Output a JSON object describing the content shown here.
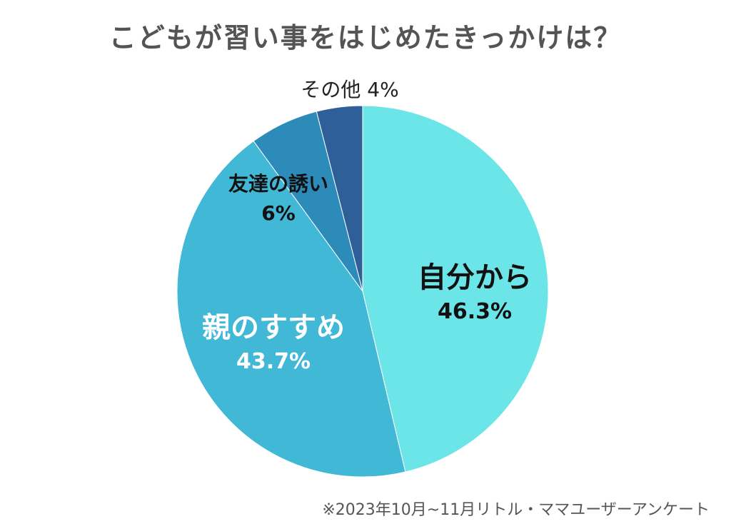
{
  "chart_data": {
    "type": "pie",
    "title": "こどもが習い事をはじめたきっかけは？",
    "slices": [
      {
        "label": "自分から",
        "value": 46.3,
        "value_label": "46.3%",
        "color": "#6ce5e8"
      },
      {
        "label": "親のすすめ",
        "value": 43.7,
        "value_label": "43.7%",
        "color": "#41b8d5"
      },
      {
        "label": "友達の誘い",
        "value": 6,
        "value_label": "6%",
        "color": "#2d8bba"
      },
      {
        "label": "その他",
        "value": 4,
        "value_label": "4%",
        "color": "#2f5f98"
      }
    ],
    "footnote": "※2023年10月~11月リトル・ママユーザーアンケート"
  }
}
